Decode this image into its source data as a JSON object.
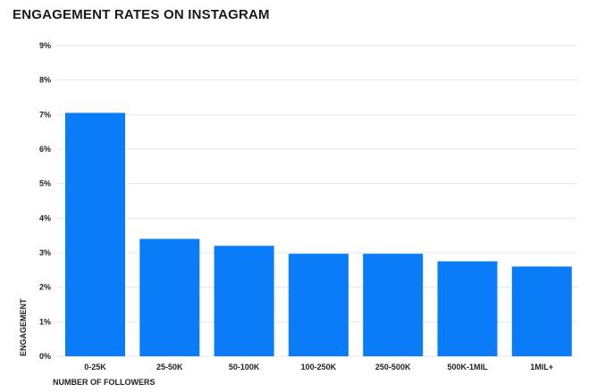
{
  "chart_data": {
    "type": "bar",
    "title": "ENGAGEMENT RATES ON INSTAGRAM",
    "xlabel": "NUMBER OF FOLLOWERS",
    "ylabel": "ENGAGEMENT",
    "categories": [
      "0-25K",
      "25-50K",
      "50-100K",
      "100-250K",
      "250-500K",
      "500K-1MIL",
      "1MIL+"
    ],
    "values": [
      7.05,
      3.4,
      3.2,
      2.97,
      2.97,
      2.75,
      2.6
    ],
    "ylim": [
      0,
      9
    ],
    "yticks": [
      "0%",
      "1%",
      "2%",
      "3%",
      "4%",
      "5%",
      "6%",
      "7%",
      "8%",
      "9%"
    ],
    "grid": true,
    "legend": "none",
    "bar_color": "#0a7cf7",
    "grid_color": "#e6e6e6"
  }
}
